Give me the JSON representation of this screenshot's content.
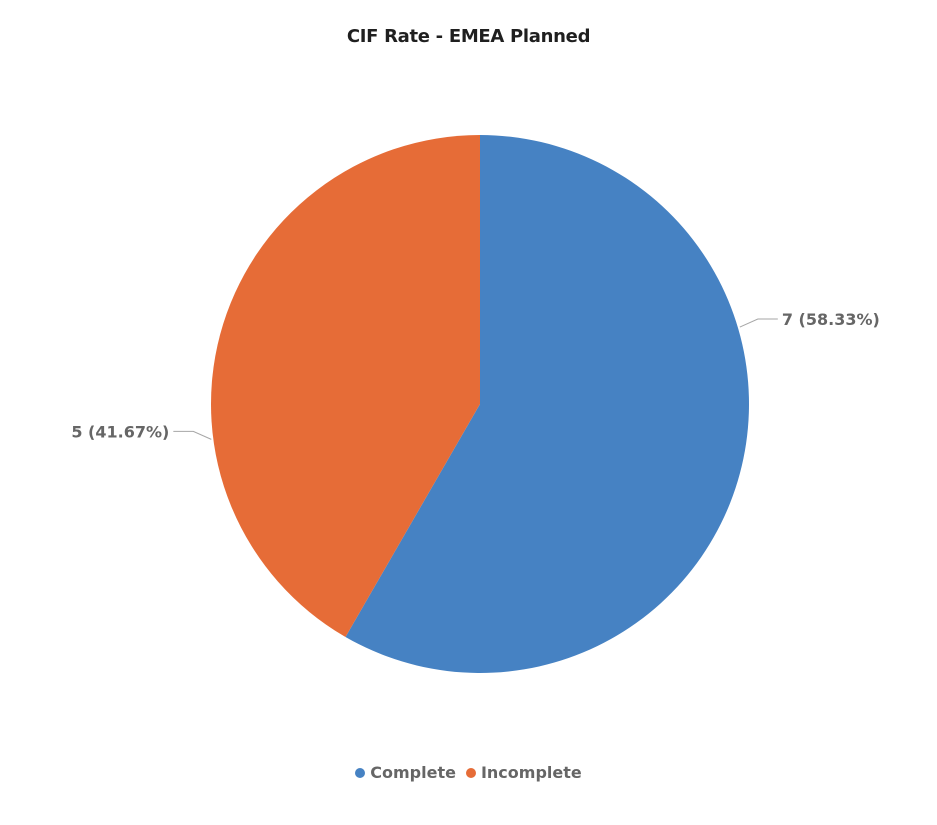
{
  "chart_data": {
    "type": "pie",
    "title": "CIF Rate - EMEA Planned",
    "slices": [
      {
        "label": "Complete",
        "value": 7,
        "percent": 58.33,
        "display": "7 (58.33%)",
        "color": "#4682C3"
      },
      {
        "label": "Incomplete",
        "value": 5,
        "percent": 41.67,
        "display": "5 (41.67%)",
        "color": "#E66C37"
      }
    ],
    "legend": {
      "placement": "bottom",
      "items": [
        {
          "label": "Complete",
          "color": "#4682C3"
        },
        {
          "label": "Incomplete",
          "color": "#E66C37"
        }
      ]
    }
  }
}
